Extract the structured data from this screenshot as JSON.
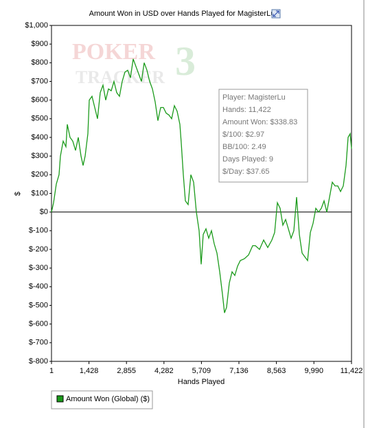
{
  "chart_data": {
    "type": "line",
    "title": "Amount Won in USD over Hands Played for MagisterLu",
    "x_label": "Hands Played",
    "y_label": "$",
    "watermark": [
      "POKER",
      "TRACKER",
      "3"
    ],
    "annotation": [
      "Player: MagisterLu",
      "Hands: 11,422",
      "Amount Won: $338.83",
      "$/100: $2.97",
      "BB/100: 2.49",
      "Days Played: 9",
      "$/Day: $37.65"
    ],
    "xlim": [
      1,
      11422
    ],
    "xticks": [
      1,
      {
        "value": 1428,
        "label": "1,428"
      },
      {
        "value": 2855,
        "label": "2,855"
      },
      {
        "value": 4282,
        "label": "4,282"
      },
      {
        "value": 5709,
        "label": "5,709"
      },
      {
        "value": 7136,
        "label": "7,136"
      },
      {
        "value": 8563,
        "label": "8,563"
      },
      {
        "value": 9990,
        "label": "9,990"
      },
      {
        "value": 11422,
        "label": "11,422"
      }
    ],
    "ylim": [
      -800,
      1000
    ],
    "yticks": [
      {
        "value": 1000,
        "label": "$1,000"
      },
      {
        "value": 900,
        "label": "$900"
      },
      {
        "value": 800,
        "label": "$800"
      },
      {
        "value": 700,
        "label": "$700"
      },
      {
        "value": 600,
        "label": "$600"
      },
      {
        "value": 500,
        "label": "$500"
      },
      {
        "value": 400,
        "label": "$400"
      },
      {
        "value": 300,
        "label": "$300"
      },
      {
        "value": 200,
        "label": "$200"
      },
      {
        "value": 100,
        "label": "$100"
      },
      {
        "value": 0,
        "label": "$0"
      },
      {
        "value": -100,
        "label": "$-100"
      },
      {
        "value": -200,
        "label": "$-200"
      },
      {
        "value": -300,
        "label": "$-300"
      },
      {
        "value": -400,
        "label": "$-400"
      },
      {
        "value": -500,
        "label": "$-500"
      },
      {
        "value": -600,
        "label": "$-600"
      },
      {
        "value": -700,
        "label": "$-700"
      },
      {
        "value": -800,
        "label": "$-800"
      }
    ],
    "grid": false,
    "x": [
      1,
      79,
      184,
      288,
      340,
      444,
      549,
      602,
      707,
      811,
      916,
      1020,
      1125,
      1203,
      1282,
      1386,
      1438,
      1543,
      1648,
      1752,
      1857,
      1961,
      2066,
      2170,
      2275,
      2379,
      2484,
      2588,
      2693,
      2797,
      2902,
      3007,
      3111,
      3216,
      3320,
      3425,
      3529,
      3634,
      3738,
      3843,
      3947,
      4052,
      4157,
      4261,
      4366,
      4470,
      4575,
      4679,
      4784,
      4888,
      4941,
      5019,
      5097,
      5202,
      5306,
      5411,
      5516,
      5620,
      5698,
      5777,
      5881,
      5986,
      6090,
      6195,
      6300,
      6404,
      6509,
      6587,
      6665,
      6770,
      6874,
      6979,
      7084,
      7188,
      7345,
      7502,
      7658,
      7763,
      7920,
      8077,
      8234,
      8390,
      8495,
      8599,
      8704,
      8809,
      8913,
      9018,
      9122,
      9227,
      9331,
      9436,
      9540,
      9645,
      9749,
      9854,
      9958,
      10063,
      10167,
      10272,
      10377,
      10481,
      10586,
      10690,
      10795,
      10899,
      11004,
      11108,
      11213,
      11291,
      11370,
      11422
    ],
    "series": [
      {
        "name": "Amount Won (Global) ($)",
        "color": "#1a9a1a",
        "values": [
          0,
          50,
          150,
          200,
          300,
          380,
          350,
          470,
          400,
          380,
          330,
          400,
          300,
          250,
          300,
          420,
          600,
          620,
          560,
          500,
          640,
          680,
          600,
          660,
          650,
          700,
          640,
          620,
          700,
          750,
          760,
          720,
          820,
          780,
          740,
          700,
          800,
          760,
          700,
          660,
          590,
          490,
          560,
          560,
          530,
          520,
          500,
          570,
          540,
          470,
          370,
          200,
          60,
          40,
          200,
          160,
          0,
          -100,
          -280,
          -120,
          -90,
          -140,
          -100,
          -170,
          -220,
          -320,
          -440,
          -540,
          -510,
          -380,
          -320,
          -340,
          -290,
          -260,
          -250,
          -230,
          -180,
          -180,
          -200,
          -150,
          -190,
          -150,
          -110,
          50,
          20,
          -70,
          -40,
          -90,
          -140,
          -100,
          80,
          -120,
          -220,
          -240,
          -260,
          -110,
          -60,
          20,
          0,
          20,
          60,
          0,
          80,
          160,
          140,
          140,
          110,
          140,
          250,
          400,
          420,
          338.83
        ]
      }
    ]
  }
}
